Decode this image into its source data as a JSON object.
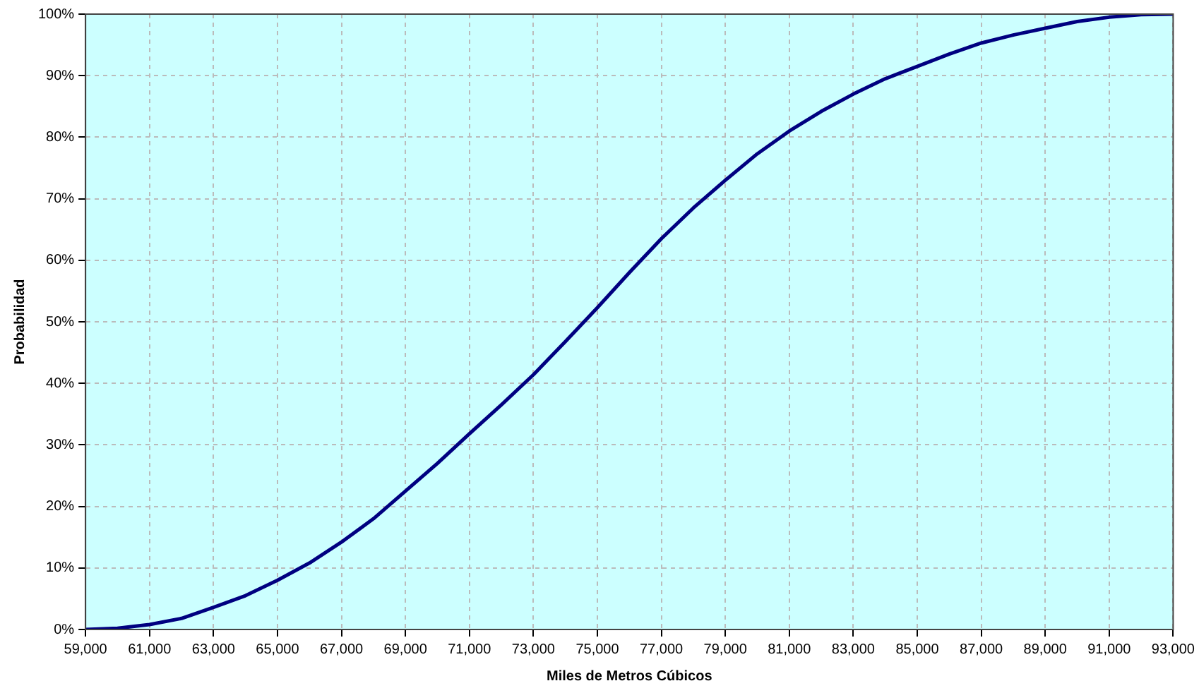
{
  "chart_data": {
    "type": "line",
    "xlabel": "Miles de Metros Cúbicos",
    "ylabel": "Probabilidad",
    "x": [
      59000,
      60000,
      61000,
      62000,
      63000,
      64000,
      65000,
      66000,
      67000,
      68000,
      69000,
      70000,
      71000,
      72000,
      73000,
      74000,
      75000,
      76000,
      77000,
      78000,
      79000,
      80000,
      81000,
      82000,
      83000,
      84000,
      85000,
      86000,
      87000,
      88000,
      89000,
      90000,
      91000,
      92000,
      93000
    ],
    "series": [
      {
        "color": "#000080",
        "values": [
          0,
          0.2,
          0.8,
          1.8,
          3.6,
          5.5,
          8,
          10.8,
          14.2,
          18,
          22.5,
          27,
          31.8,
          36.5,
          41.4,
          46.8,
          52.3,
          58,
          63.5,
          68.5,
          73,
          77.3,
          81,
          84.2,
          87,
          89.5,
          91.5,
          93.5,
          95.3,
          96.6,
          97.7,
          98.8,
          99.5,
          99.9,
          100
        ]
      }
    ],
    "xlim": [
      59000,
      93000
    ],
    "ylim": [
      0,
      100
    ],
    "xticks": [
      {
        "value": 59000,
        "label": "59,000"
      },
      {
        "value": 61000,
        "label": "61,000"
      },
      {
        "value": 63000,
        "label": "63,000"
      },
      {
        "value": 65000,
        "label": "65,000"
      },
      {
        "value": 67000,
        "label": "67,000"
      },
      {
        "value": 69000,
        "label": "69,000"
      },
      {
        "value": 71000,
        "label": "71,000"
      },
      {
        "value": 73000,
        "label": "73,000"
      },
      {
        "value": 75000,
        "label": "75,000"
      },
      {
        "value": 77000,
        "label": "77,000"
      },
      {
        "value": 79000,
        "label": "79,000"
      },
      {
        "value": 81000,
        "label": "81,000"
      },
      {
        "value": 83000,
        "label": "83,000"
      },
      {
        "value": 85000,
        "label": "85,000"
      },
      {
        "value": 87000,
        "label": "87,000"
      },
      {
        "value": 89000,
        "label": "89,000"
      },
      {
        "value": 91000,
        "label": "91,000"
      },
      {
        "value": 93000,
        "label": "93,000"
      }
    ],
    "yticks": [
      {
        "value": 0,
        "label": "0%"
      },
      {
        "value": 10,
        "label": "10%"
      },
      {
        "value": 20,
        "label": "20%"
      },
      {
        "value": 30,
        "label": "30%"
      },
      {
        "value": 40,
        "label": "40%"
      },
      {
        "value": 50,
        "label": "50%"
      },
      {
        "value": 60,
        "label": "60%"
      },
      {
        "value": 70,
        "label": "70%"
      },
      {
        "value": 80,
        "label": "80%"
      },
      {
        "value": 90,
        "label": "90%"
      },
      {
        "value": 100,
        "label": "100%"
      }
    ],
    "grid": true,
    "legend": false,
    "marker": "none",
    "line_style": "solid"
  }
}
